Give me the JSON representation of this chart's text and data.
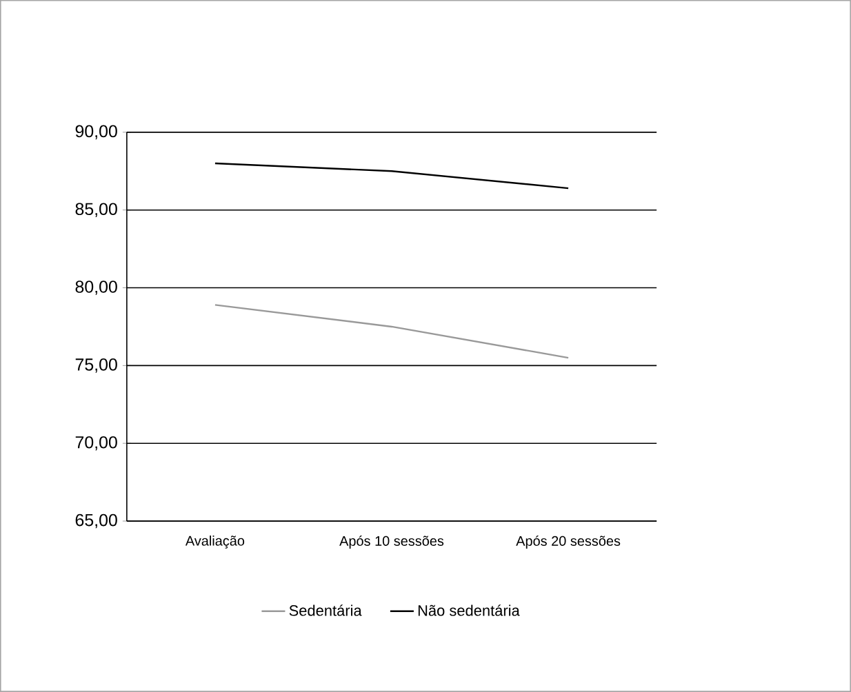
{
  "chart_data": {
    "type": "line",
    "categories": [
      "Avaliação",
      "Após 10 sessões",
      "Após 20 sessões"
    ],
    "series": [
      {
        "name": "Sedentária",
        "color": "#999999",
        "values": [
          78.9,
          77.5,
          75.5
        ]
      },
      {
        "name": "Não sedentária",
        "color": "#000000",
        "values": [
          88.0,
          87.5,
          86.4
        ]
      }
    ],
    "ylim": [
      65,
      90
    ],
    "yticks": [
      {
        "value": 65,
        "label": "65,00"
      },
      {
        "value": 70,
        "label": "70,00"
      },
      {
        "value": 75,
        "label": "75,00"
      },
      {
        "value": 80,
        "label": "80,00"
      },
      {
        "value": 85,
        "label": "85,00"
      },
      {
        "value": 90,
        "label": "90,00"
      }
    ],
    "grid": "y",
    "legend": "bottom",
    "marker": "none",
    "line_style": "solid"
  }
}
